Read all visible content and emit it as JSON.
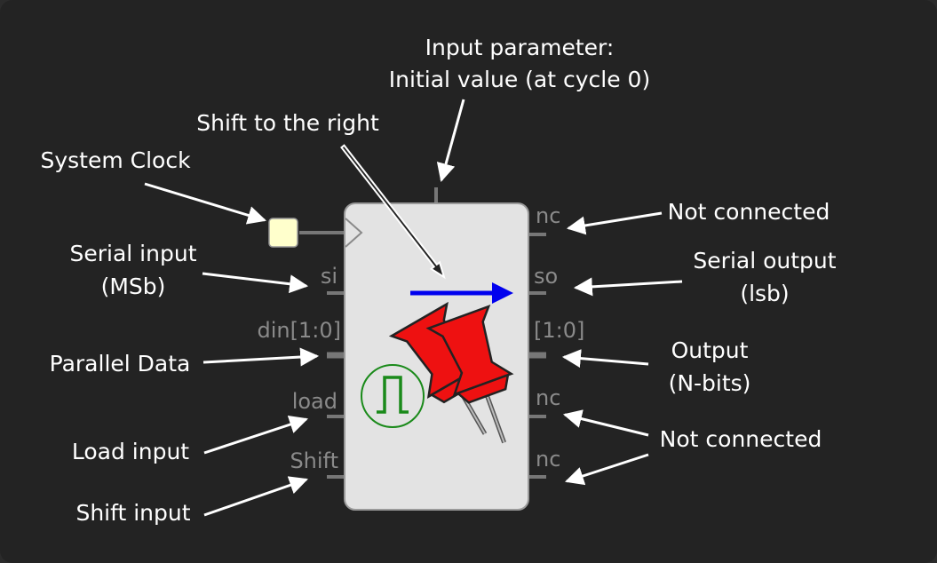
{
  "block": {
    "pins_left": {
      "si": "si",
      "din": "din[1:0]",
      "load": "load",
      "shift": "Shift"
    },
    "pins_right": {
      "nc_top": "nc",
      "so": "so",
      "out": "[1:0]",
      "nc_mid": "nc",
      "nc_bot": "nc"
    },
    "icons": [
      "clock-pulse-icon",
      "pushpin-icon",
      "shift-right-arrow-icon"
    ]
  },
  "annotations": {
    "input_parameter_line1": "Input parameter:",
    "input_parameter_line2": "Initial value (at cycle 0)",
    "shift_right": "Shift to the right",
    "system_clock": "System Clock",
    "serial_input_line1": "Serial input",
    "serial_input_line2": "(MSb)",
    "parallel_data": "Parallel Data",
    "load_input": "Load input",
    "shift_input": "Shift input",
    "not_connected_top": "Not connected",
    "serial_output_line1": "Serial  output",
    "serial_output_line2": "(lsb)",
    "output_line1": "Output",
    "output_line2": "(N-bits)",
    "not_connected_bottom": "Not connected"
  },
  "colors": {
    "background": "#232323",
    "block_fill": "#e3e3e3",
    "pin_label": "#8a8a8a",
    "arrow_blue": "#0000ee",
    "pin_red": "#ee1111",
    "clock_green": "#1a8a1a",
    "clock_input_fill": "#ffffcc"
  }
}
